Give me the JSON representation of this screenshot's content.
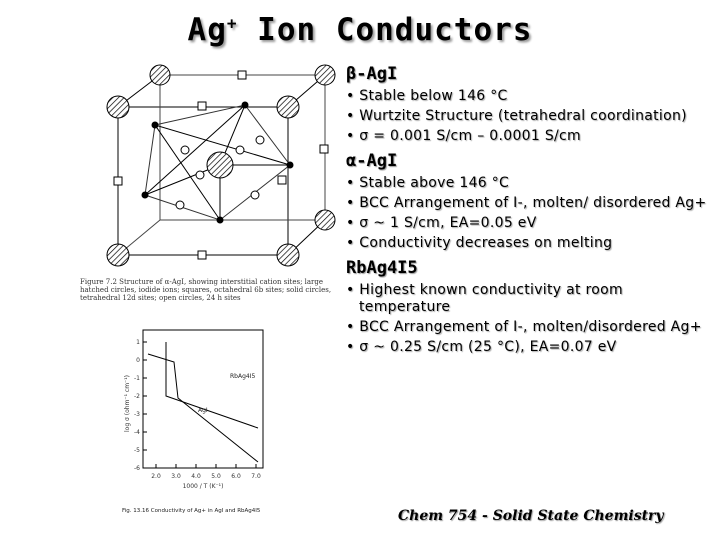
{
  "title": {
    "main": "Ag",
    "sup": "+",
    "rest": " Ion Conductors"
  },
  "sections": [
    {
      "heading": "β-AgI",
      "bullets": [
        "• Stable below 146 °C",
        "• Wurtzite Structure (tetrahedral coordination)",
        "• σ = 0.001 S/cm – 0.0001 S/cm"
      ]
    },
    {
      "heading": "α-AgI",
      "bullets": [
        "• Stable above 146 °C",
        "• BCC Arrangement of I-, molten/ disordered Ag+",
        "• σ ~ 1 S/cm, EA=0.05 eV",
        "• Conductivity decreases on melting"
      ]
    },
    {
      "heading": "RbAg4I5",
      "bullets": [
        "• Highest known conductivity at room temperature",
        "• BCC Arrangement of I-, molten/disordered Ag+",
        "• σ ~ 0.25 S/cm (25 °C), EA=0.07 eV"
      ]
    }
  ],
  "figure_top": {
    "caption": "Figure 7.2  Structure of α-AgI, showing interstitial cation sites; large hatched circles, iodide ions; squares, octahedral 6b sites; solid circles, tetrahedral 12d sites; open circles, 24 h sites"
  },
  "figure_bottom": {
    "caption": "Fig. 13.16  Conductivity of Ag+ in AgI and RbAg4I5",
    "series": [
      "RbAg4I5",
      "AgI"
    ],
    "y_ticks": [
      "1",
      "0",
      "-1",
      "-2",
      "-3",
      "-4",
      "-5",
      "-6"
    ],
    "x_ticks": [
      "2.0",
      "3.0",
      "4.0",
      "5.0",
      "6.0",
      "7.0"
    ],
    "ylabel": "log σ (ohm⁻¹ cm⁻¹)",
    "xlabel": "1000 / T (K⁻¹)"
  },
  "footer": "Chem 754 - Solid State Chemistry"
}
